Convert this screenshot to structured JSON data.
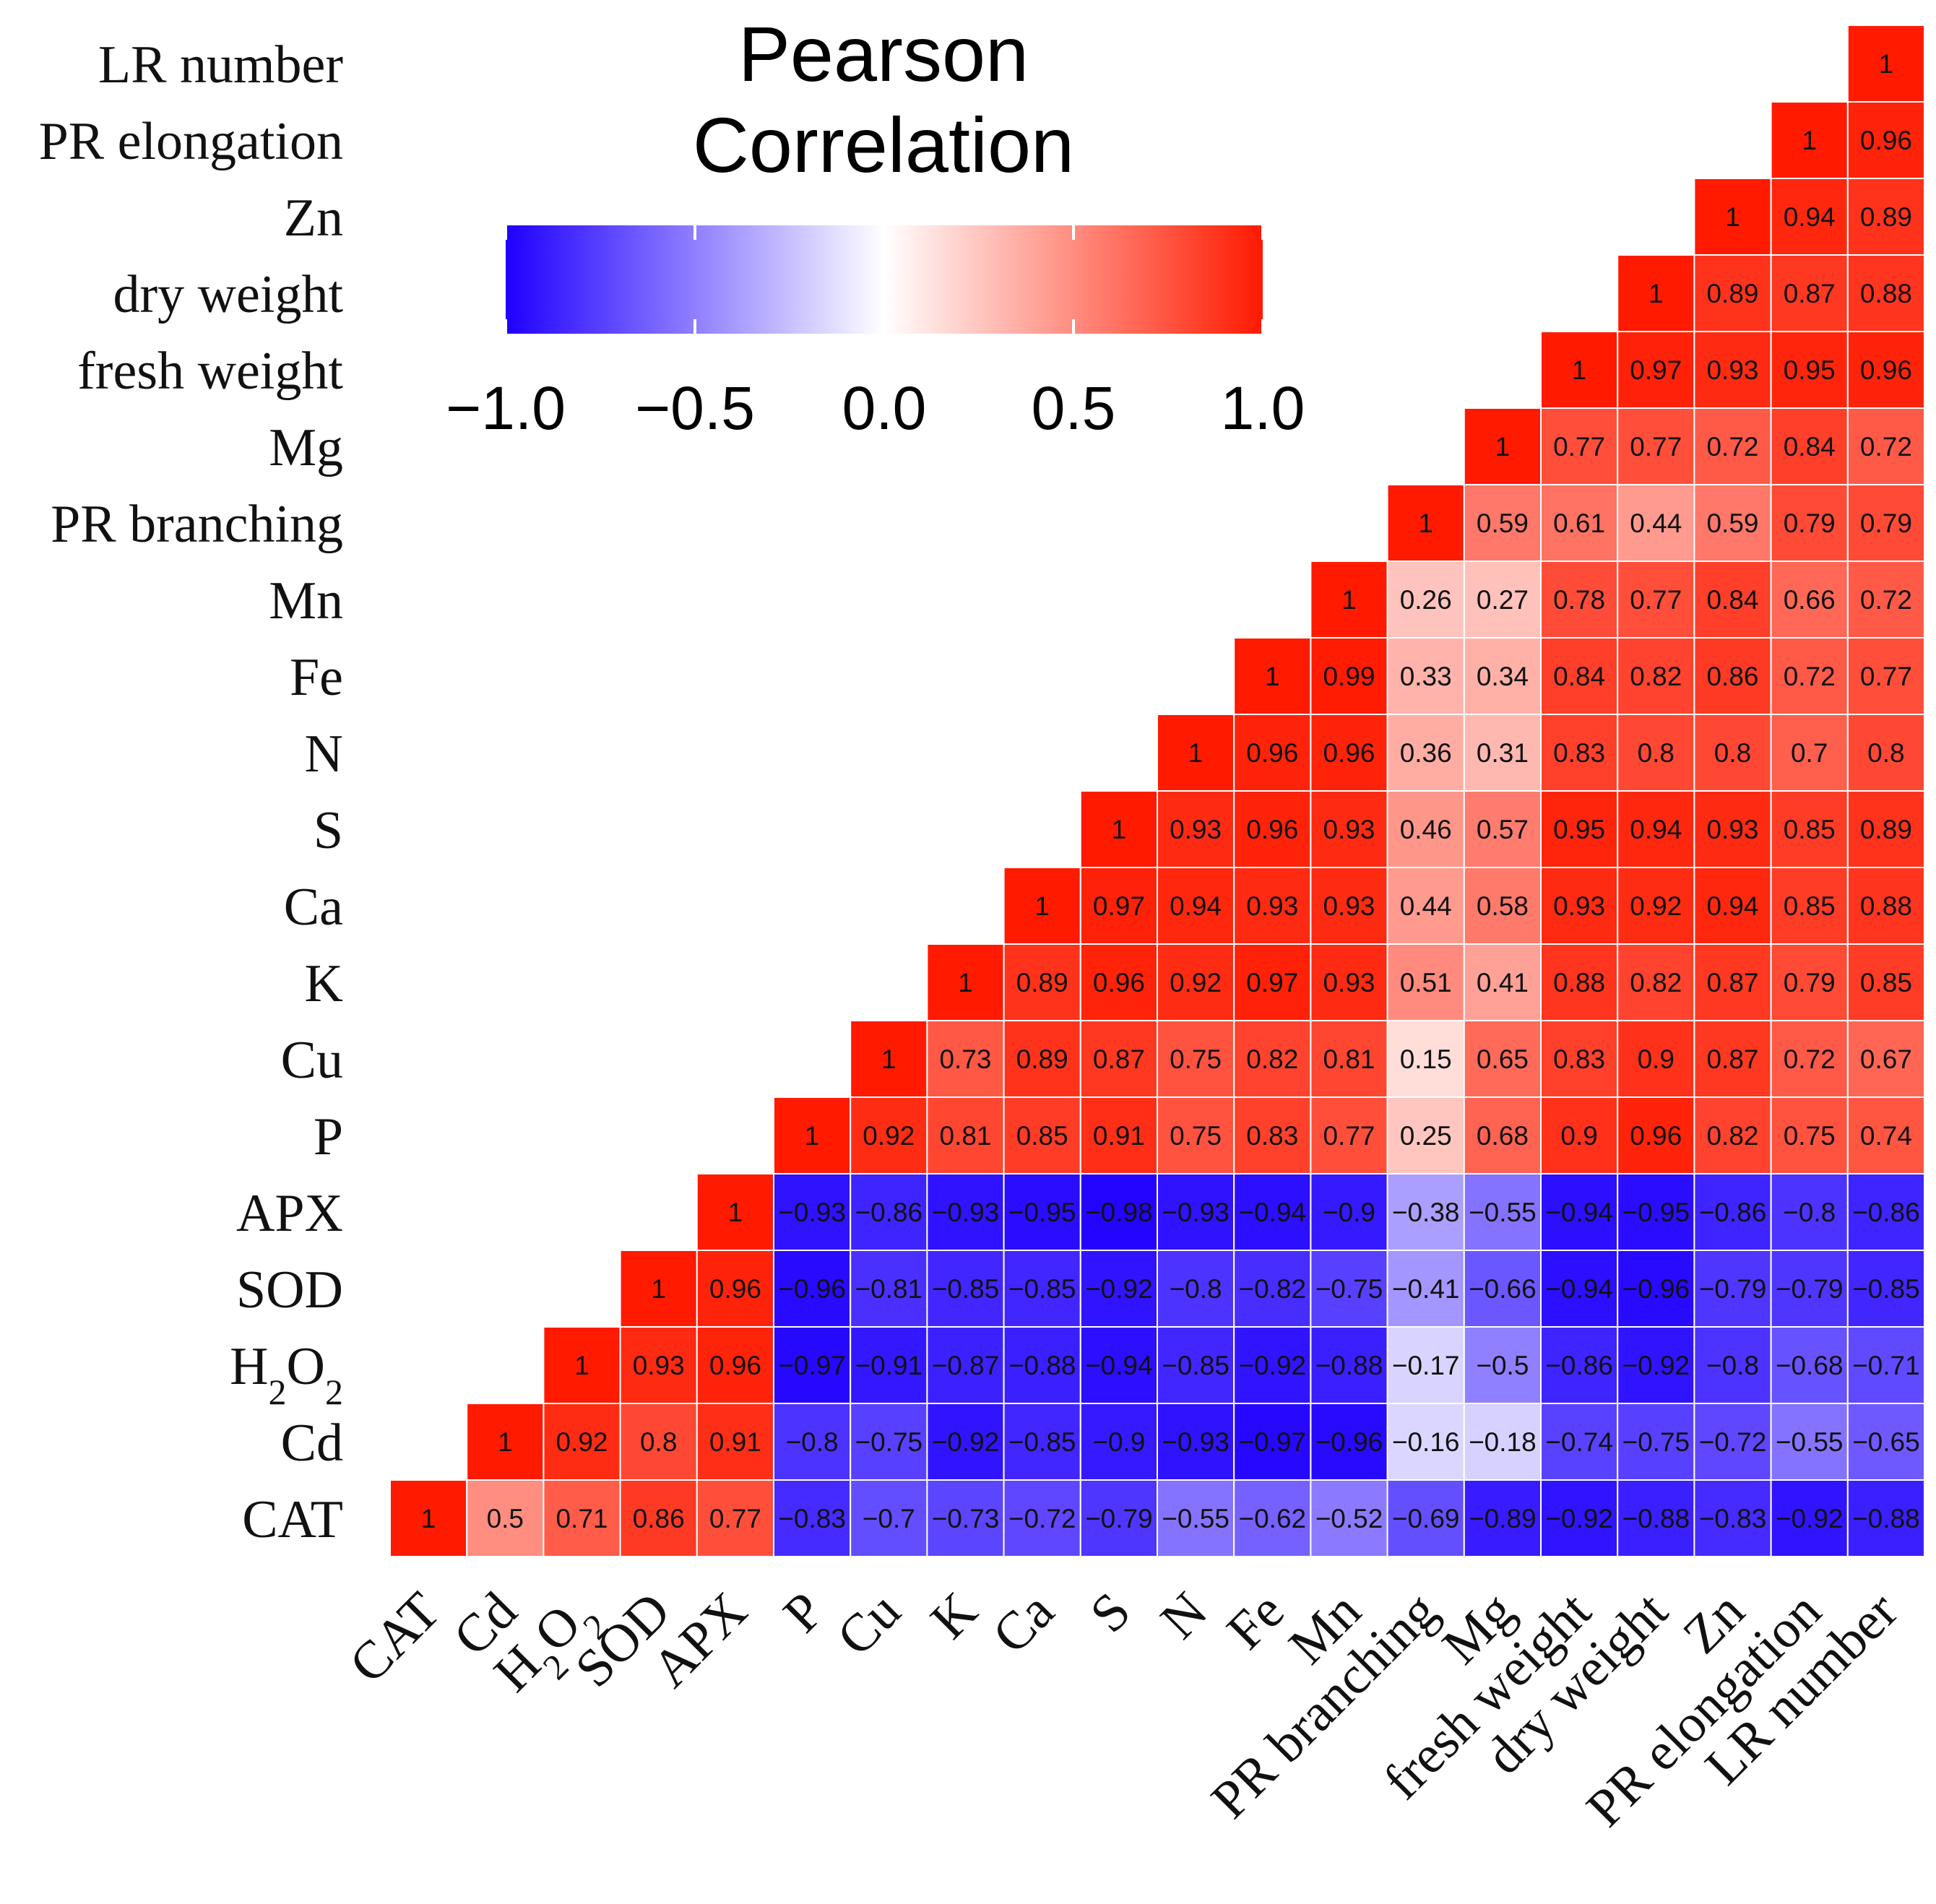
{
  "colors": {
    "negative": "#1f00ff",
    "zero": "#ffffff",
    "positive": "#ff1a00",
    "grid": "#ffffff"
  },
  "chart_data": {
    "type": "heatmap",
    "title": "",
    "labels": [
      "CAT",
      "Cd",
      "H2O2",
      "SOD",
      "APX",
      "P",
      "Cu",
      "K",
      "Ca",
      "S",
      "N",
      "Fe",
      "Mn",
      "PR branching",
      "Mg",
      "fresh weight",
      "dry weight",
      "Zn",
      "PR elongation",
      "LR number"
    ],
    "upper_triangle_only": true,
    "values": [
      [
        1,
        0.5,
        0.71,
        0.86,
        0.77,
        -0.83,
        -0.7,
        -0.73,
        -0.72,
        -0.79,
        -0.55,
        -0.62,
        -0.52,
        -0.69,
        -0.89,
        -0.92,
        -0.88,
        -0.83,
        -0.92,
        -0.88
      ],
      [
        0.5,
        1,
        0.92,
        0.8,
        0.91,
        -0.8,
        -0.75,
        -0.92,
        -0.85,
        -0.9,
        -0.93,
        -0.97,
        -0.96,
        -0.16,
        -0.18,
        -0.74,
        -0.75,
        -0.72,
        -0.55,
        -0.65
      ],
      [
        0.71,
        0.92,
        1,
        0.93,
        0.96,
        -0.97,
        -0.91,
        -0.87,
        -0.88,
        -0.94,
        -0.85,
        -0.92,
        -0.88,
        -0.17,
        -0.5,
        -0.86,
        -0.92,
        -0.8,
        -0.68,
        -0.71
      ],
      [
        0.86,
        0.8,
        0.93,
        1,
        0.96,
        -0.96,
        -0.81,
        -0.85,
        -0.85,
        -0.92,
        -0.8,
        -0.82,
        -0.75,
        -0.41,
        -0.66,
        -0.94,
        -0.96,
        -0.79,
        -0.79,
        -0.85
      ],
      [
        0.77,
        0.91,
        0.96,
        0.96,
        1,
        -0.93,
        -0.86,
        -0.93,
        -0.95,
        -0.98,
        -0.93,
        -0.94,
        -0.9,
        -0.38,
        -0.55,
        -0.94,
        -0.95,
        -0.86,
        -0.8,
        -0.86
      ],
      [
        -0.83,
        -0.8,
        -0.97,
        -0.96,
        -0.93,
        1,
        0.92,
        0.81,
        0.85,
        0.91,
        0.75,
        0.83,
        0.77,
        0.25,
        0.68,
        0.9,
        0.96,
        0.82,
        0.75,
        0.74
      ],
      [
        -0.7,
        -0.75,
        -0.91,
        -0.81,
        -0.86,
        0.92,
        1,
        0.73,
        0.89,
        0.87,
        0.75,
        0.82,
        0.81,
        0.15,
        0.65,
        0.83,
        0.9,
        0.87,
        0.72,
        0.67
      ],
      [
        -0.73,
        -0.92,
        -0.87,
        -0.85,
        -0.93,
        0.81,
        0.73,
        1,
        0.89,
        0.96,
        0.92,
        0.97,
        0.93,
        0.51,
        0.41,
        0.88,
        0.82,
        0.87,
        0.79,
        0.85
      ],
      [
        -0.72,
        -0.85,
        -0.88,
        -0.85,
        -0.95,
        0.85,
        0.89,
        0.89,
        1,
        0.97,
        0.94,
        0.93,
        0.93,
        0.44,
        0.58,
        0.93,
        0.92,
        0.94,
        0.85,
        0.88
      ],
      [
        -0.79,
        -0.9,
        -0.94,
        -0.92,
        -0.98,
        0.91,
        0.87,
        0.96,
        0.97,
        1,
        0.93,
        0.96,
        0.93,
        0.46,
        0.57,
        0.95,
        0.94,
        0.93,
        0.85,
        0.89
      ],
      [
        -0.55,
        -0.93,
        -0.85,
        -0.8,
        -0.93,
        0.75,
        0.75,
        0.92,
        0.94,
        0.93,
        1,
        0.96,
        0.96,
        0.36,
        0.31,
        0.83,
        0.8,
        0.8,
        0.7,
        0.8
      ],
      [
        -0.62,
        -0.97,
        -0.92,
        -0.82,
        -0.94,
        0.83,
        0.82,
        0.97,
        0.93,
        0.96,
        0.96,
        1,
        0.99,
        0.33,
        0.34,
        0.84,
        0.82,
        0.86,
        0.72,
        0.77
      ],
      [
        -0.52,
        -0.96,
        -0.88,
        -0.75,
        -0.9,
        0.77,
        0.81,
        0.93,
        0.93,
        0.93,
        0.96,
        0.99,
        1,
        0.26,
        0.27,
        0.78,
        0.77,
        0.84,
        0.66,
        0.72
      ],
      [
        -0.69,
        -0.16,
        -0.17,
        -0.41,
        -0.38,
        0.25,
        0.15,
        0.51,
        0.44,
        0.46,
        0.36,
        0.33,
        0.26,
        1,
        0.59,
        0.61,
        0.44,
        0.59,
        0.79,
        0.79
      ],
      [
        -0.89,
        -0.18,
        -0.5,
        -0.66,
        -0.55,
        0.68,
        0.65,
        0.41,
        0.58,
        0.57,
        0.31,
        0.34,
        0.27,
        0.59,
        1,
        0.77,
        0.77,
        0.72,
        0.84,
        0.72
      ],
      [
        -0.92,
        -0.74,
        -0.86,
        -0.94,
        -0.94,
        0.9,
        0.83,
        0.88,
        0.93,
        0.95,
        0.83,
        0.84,
        0.78,
        0.61,
        0.77,
        1,
        0.97,
        0.93,
        0.95,
        0.96
      ],
      [
        -0.88,
        -0.75,
        -0.92,
        -0.96,
        -0.95,
        0.96,
        0.9,
        0.82,
        0.92,
        0.94,
        0.8,
        0.82,
        0.77,
        0.44,
        0.77,
        0.97,
        1,
        0.89,
        0.87,
        0.88
      ],
      [
        -0.83,
        -0.72,
        -0.8,
        -0.79,
        -0.86,
        0.82,
        0.87,
        0.87,
        0.94,
        0.93,
        0.8,
        0.86,
        0.84,
        0.59,
        0.72,
        0.93,
        0.89,
        1,
        0.94,
        0.89
      ],
      [
        -0.92,
        -0.55,
        -0.68,
        -0.79,
        -0.8,
        0.75,
        0.72,
        0.79,
        0.85,
        0.85,
        0.7,
        0.72,
        0.66,
        0.79,
        0.84,
        0.95,
        0.87,
        0.94,
        1,
        0.96
      ],
      [
        -0.88,
        -0.65,
        -0.71,
        -0.85,
        -0.86,
        0.74,
        0.67,
        0.85,
        0.88,
        0.89,
        0.8,
        0.77,
        0.72,
        0.79,
        0.72,
        0.96,
        0.88,
        0.89,
        0.96,
        1
      ]
    ],
    "legend": {
      "title": [
        "Pearson",
        "Correlation"
      ],
      "range": [
        -1,
        1
      ],
      "ticks": [
        "−1.0",
        "−0.5",
        "0.0",
        "0.5",
        "1.0"
      ],
      "placement": "top-left"
    }
  }
}
